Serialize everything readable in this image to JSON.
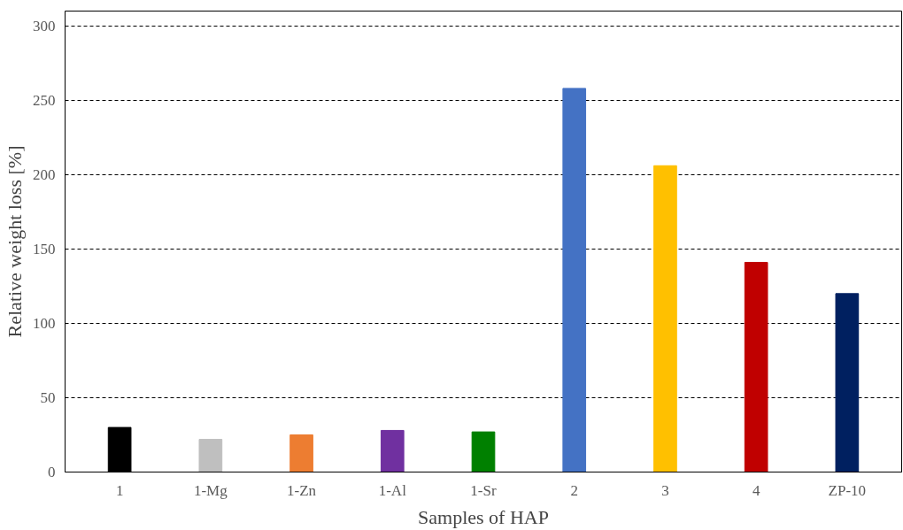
{
  "chart_data": {
    "type": "bar",
    "xlabel": "Samples of HAP",
    "ylabel": "Relative weight loss [%]",
    "categories": [
      "1",
      "1-Mg",
      "1-Zn",
      "1-Al",
      "1-Sr",
      "2",
      "3",
      "4",
      "ZP-10"
    ],
    "values": [
      30,
      22,
      25,
      28,
      27,
      258,
      206,
      141,
      120
    ],
    "colors": [
      "#000000",
      "#bfbfbf",
      "#ed7d31",
      "#7030a0",
      "#008000",
      "#4472c4",
      "#ffc000",
      "#c00000",
      "#002060"
    ],
    "ylim": [
      0,
      310
    ],
    "yticks": [
      0,
      50,
      100,
      150,
      200,
      250,
      300
    ],
    "grid": "y",
    "line_style": "dashed"
  }
}
